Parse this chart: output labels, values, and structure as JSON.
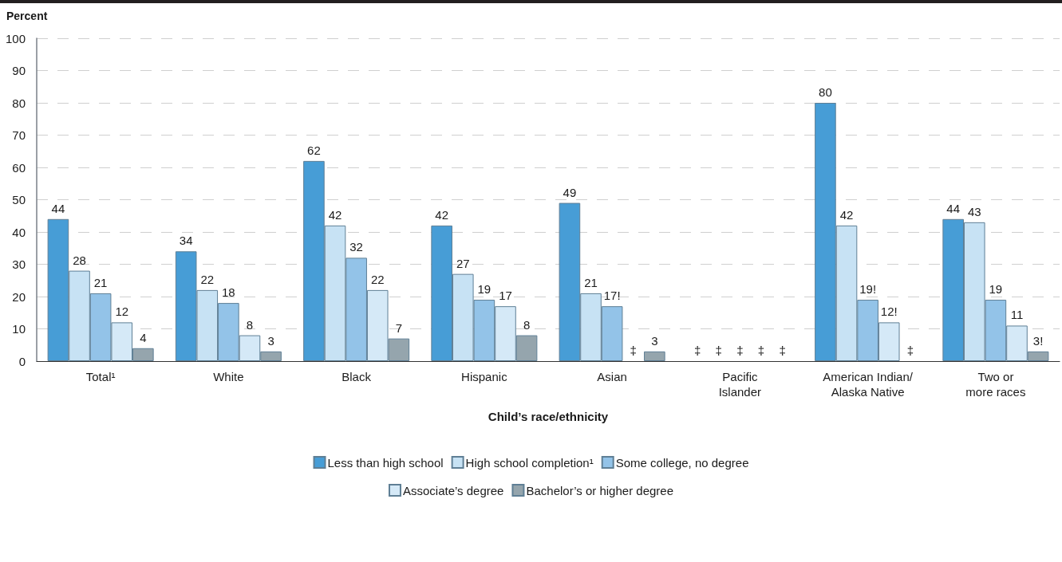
{
  "chart_data": {
    "type": "bar",
    "ylabel": "Percent",
    "xlabel": "Child’s race/ethnicity",
    "categories": [
      "Total¹",
      "White",
      "Black",
      "Hispanic",
      "Asian",
      "Pacific Islander",
      "American Indian/Alaska Native",
      "Two or more races"
    ],
    "series": [
      {
        "name": "Less than high school",
        "color": "#479dd6",
        "values": [
          44,
          34,
          62,
          42,
          49,
          null,
          80,
          44
        ],
        "value_labels": [
          "44",
          "34",
          "62",
          "42",
          "49",
          "‡",
          "80",
          "44"
        ]
      },
      {
        "name": "High school completion¹",
        "color": "#c7e2f4",
        "values": [
          28,
          22,
          42,
          27,
          21,
          null,
          42,
          43
        ],
        "value_labels": [
          "28",
          "22",
          "42",
          "27",
          "21",
          "‡",
          "42",
          "43"
        ]
      },
      {
        "name": "Some college, no degree",
        "color": "#93c3e8",
        "values": [
          21,
          18,
          32,
          19,
          17,
          null,
          19,
          19
        ],
        "value_labels": [
          "21",
          "18",
          "32",
          "19",
          "17!",
          "‡",
          "19!",
          "19"
        ]
      },
      {
        "name": "Associate’s degree",
        "color": "#d5e9f7",
        "values": [
          12,
          8,
          22,
          17,
          null,
          null,
          12,
          11
        ],
        "value_labels": [
          "12",
          "8",
          "22",
          "17",
          "‡",
          "‡",
          "12!",
          "11"
        ]
      },
      {
        "name": "Bachelor’s or higher degree",
        "color": "#95a5ad",
        "values": [
          4,
          3,
          7,
          8,
          3,
          null,
          null,
          3
        ],
        "value_labels": [
          "4",
          "3",
          "7",
          "8",
          "3",
          "‡",
          "‡",
          "3!"
        ]
      }
    ],
    "ylim": [
      0,
      100
    ],
    "yticks": [
      0,
      10,
      20,
      30,
      40,
      50,
      60,
      70,
      80,
      90,
      100
    ],
    "grid": "y",
    "legend": "bottom"
  }
}
